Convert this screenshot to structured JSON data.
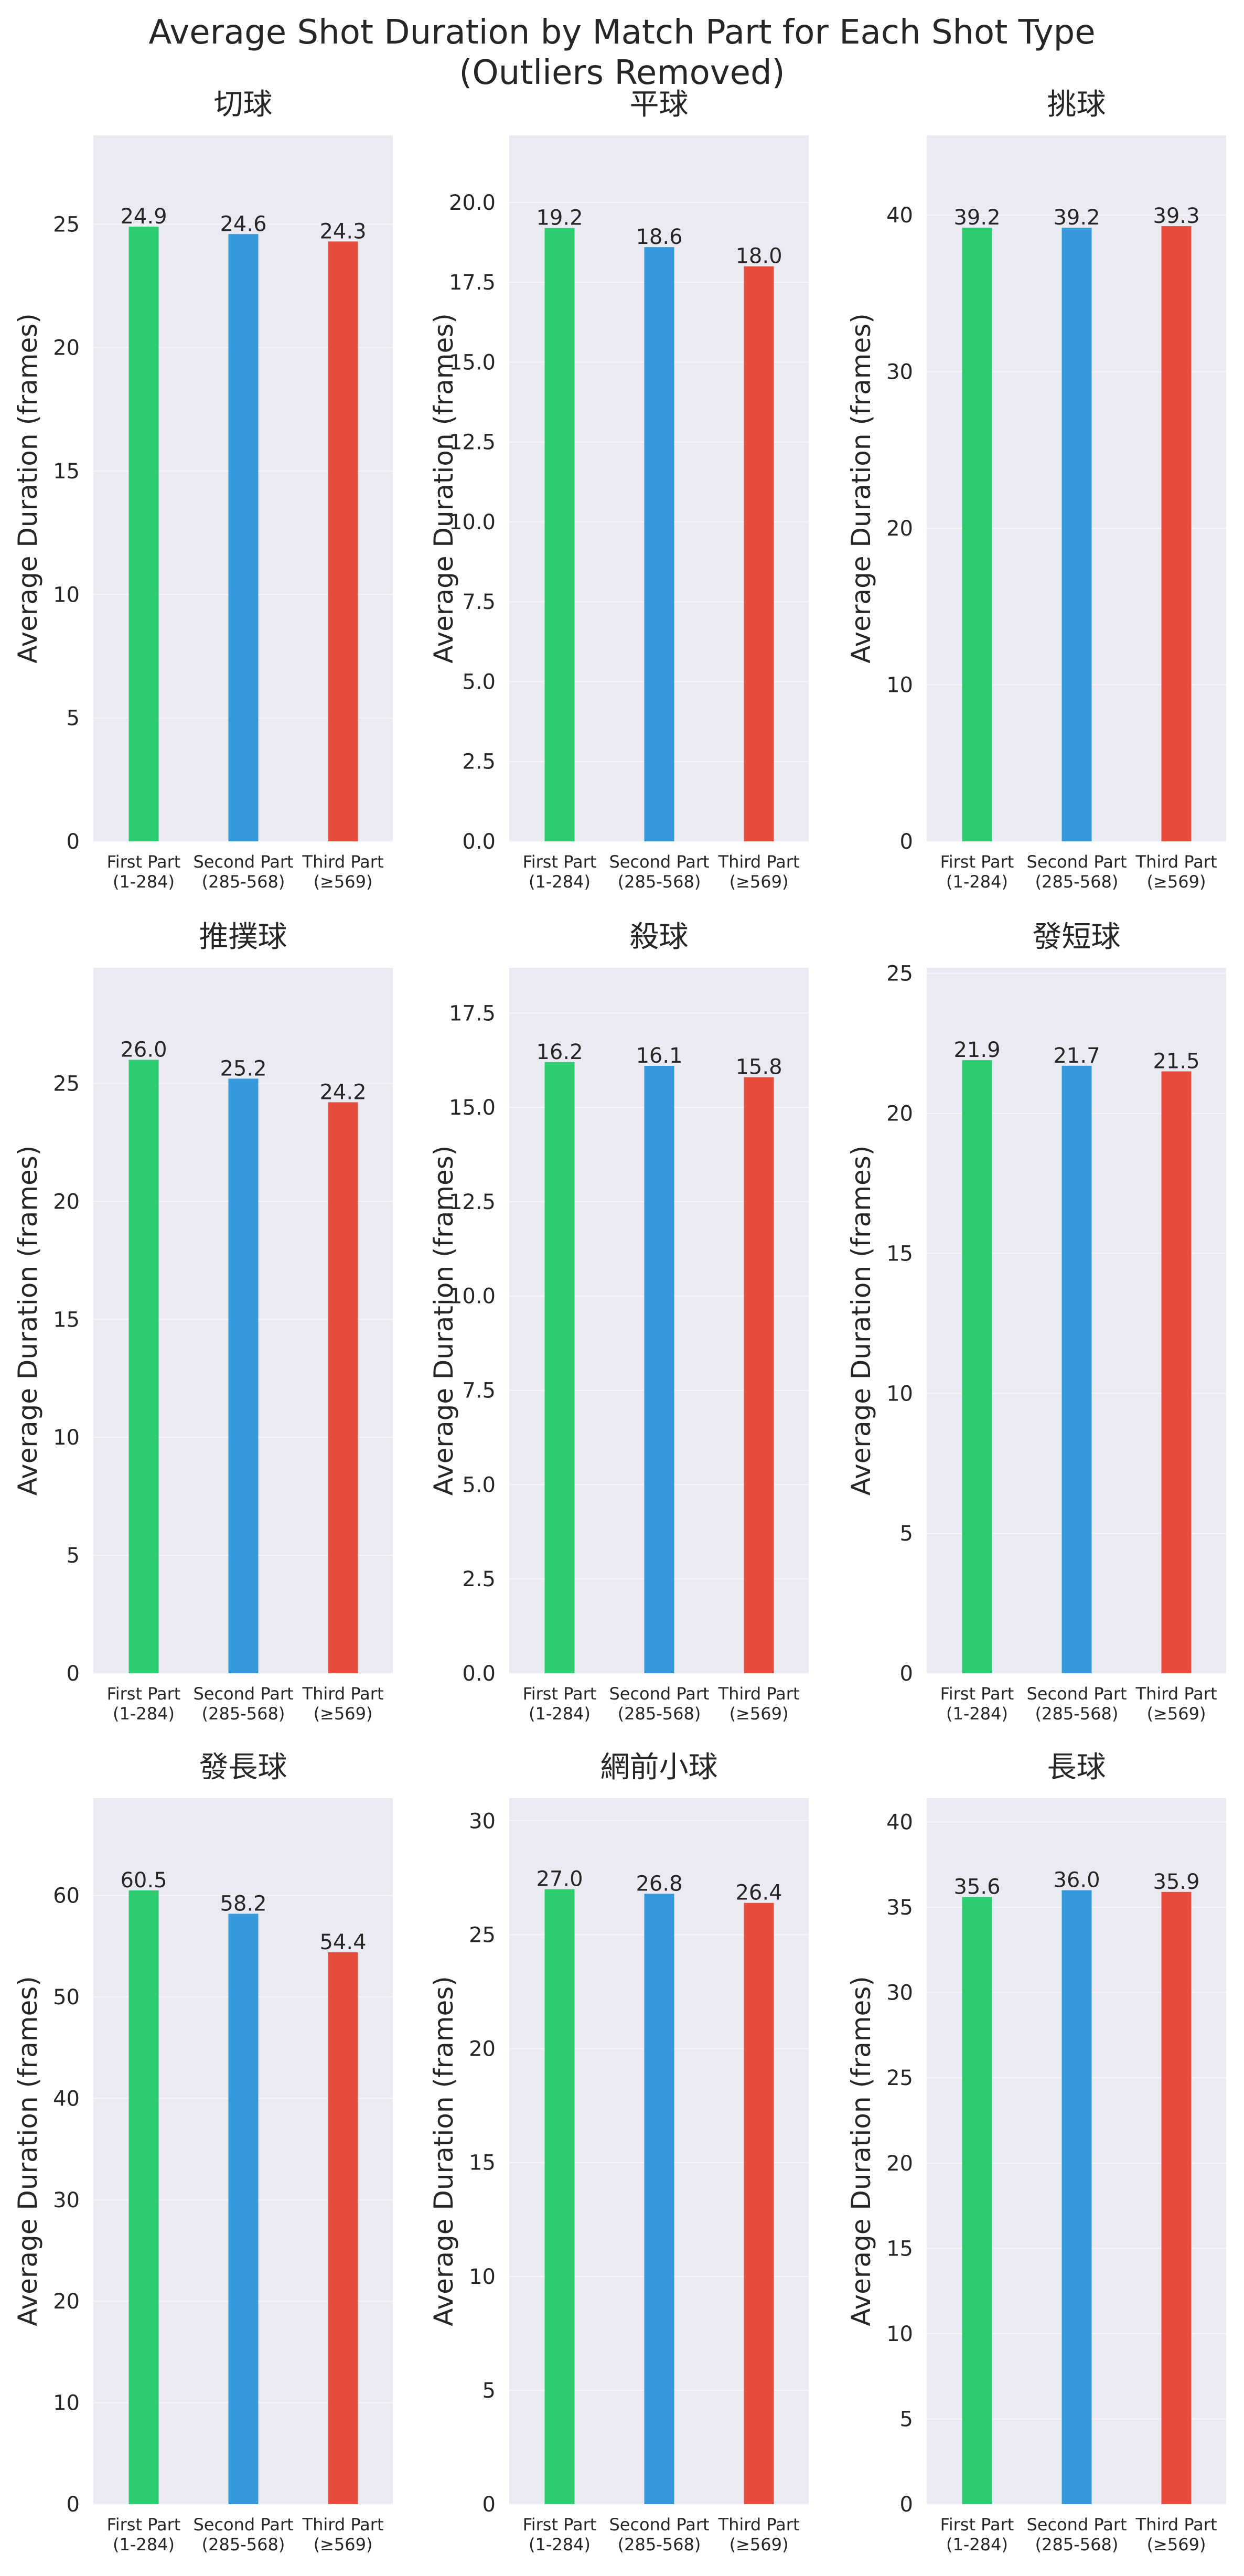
{
  "title_line1": "Average Shot Duration by Match Part for Each Shot Type",
  "title_line2": "(Outliers Removed)",
  "colors": {
    "background": "#ffffff",
    "plot_bg": "#eaeaf2",
    "grid": "#f6f6f9",
    "bars": [
      "#2ecc71",
      "#3498db",
      "#e74c3c"
    ]
  },
  "chart_data": [
    {
      "type": "bar",
      "title": "切球",
      "ylabel": "Average Duration (frames)",
      "categories": [
        [
          "First Part",
          "(1-284)"
        ],
        [
          "Second Part",
          "(285-568)"
        ],
        [
          "Third Part",
          "(≥569)"
        ]
      ],
      "values": [
        24.9,
        24.6,
        24.3
      ],
      "value_labels": [
        "24.9",
        "24.6",
        "24.3"
      ],
      "ylim": [
        0,
        28.6
      ],
      "yticks": [
        0,
        5,
        10,
        15,
        20,
        25
      ],
      "ytick_labels": [
        "0",
        "5",
        "10",
        "15",
        "20",
        "25"
      ],
      "grid": true
    },
    {
      "type": "bar",
      "title": "平球",
      "ylabel": "Average Duration (frames)",
      "categories": [
        [
          "First Part",
          "(1-284)"
        ],
        [
          "Second Part",
          "(285-568)"
        ],
        [
          "Third Part",
          "(≥569)"
        ]
      ],
      "values": [
        19.2,
        18.6,
        18.0
      ],
      "value_labels": [
        "19.2",
        "18.6",
        "18.0"
      ],
      "ylim": [
        0,
        22.1
      ],
      "yticks": [
        0,
        2.5,
        5,
        7.5,
        10,
        12.5,
        15,
        17.5,
        20
      ],
      "ytick_labels": [
        "0.0",
        "2.5",
        "5.0",
        "7.5",
        "10.0",
        "12.5",
        "15.0",
        "17.5",
        "20.0"
      ],
      "grid": true
    },
    {
      "type": "bar",
      "title": "挑球",
      "ylabel": "Average Duration (frames)",
      "categories": [
        [
          "First Part",
          "(1-284)"
        ],
        [
          "Second Part",
          "(285-568)"
        ],
        [
          "Third Part",
          "(≥569)"
        ]
      ],
      "values": [
        39.2,
        39.2,
        39.3
      ],
      "value_labels": [
        "39.2",
        "39.2",
        "39.3"
      ],
      "ylim": [
        0,
        45.1
      ],
      "yticks": [
        0,
        10,
        20,
        30,
        40
      ],
      "ytick_labels": [
        "0",
        "10",
        "20",
        "30",
        "40"
      ],
      "grid": true
    },
    {
      "type": "bar",
      "title": "推撲球",
      "ylabel": "Average Duration (frames)",
      "categories": [
        [
          "First Part",
          "(1-284)"
        ],
        [
          "Second Part",
          "(285-568)"
        ],
        [
          "Third Part",
          "(≥569)"
        ]
      ],
      "values": [
        26.0,
        25.2,
        24.2
      ],
      "value_labels": [
        "26.0",
        "25.2",
        "24.2"
      ],
      "ylim": [
        0,
        29.9
      ],
      "yticks": [
        0,
        5,
        10,
        15,
        20,
        25
      ],
      "ytick_labels": [
        "0",
        "5",
        "10",
        "15",
        "20",
        "25"
      ],
      "grid": true
    },
    {
      "type": "bar",
      "title": "殺球",
      "ylabel": "Average Duration (frames)",
      "categories": [
        [
          "First Part",
          "(1-284)"
        ],
        [
          "Second Part",
          "(285-568)"
        ],
        [
          "Third Part",
          "(≥569)"
        ]
      ],
      "values": [
        16.2,
        16.1,
        15.8
      ],
      "value_labels": [
        "16.2",
        "16.1",
        "15.8"
      ],
      "ylim": [
        0,
        18.7
      ],
      "yticks": [
        0,
        2.5,
        5,
        7.5,
        10,
        12.5,
        15,
        17.5
      ],
      "ytick_labels": [
        "0.0",
        "2.5",
        "5.0",
        "7.5",
        "10.0",
        "12.5",
        "15.0",
        "17.5"
      ],
      "grid": true
    },
    {
      "type": "bar",
      "title": "發短球",
      "ylabel": "Average Duration (frames)",
      "categories": [
        [
          "First Part",
          "(1-284)"
        ],
        [
          "Second Part",
          "(285-568)"
        ],
        [
          "Third Part",
          "(≥569)"
        ]
      ],
      "values": [
        21.9,
        21.7,
        21.5
      ],
      "value_labels": [
        "21.9",
        "21.7",
        "21.5"
      ],
      "ylim": [
        0,
        25.2
      ],
      "yticks": [
        0,
        5,
        10,
        15,
        20,
        25
      ],
      "ytick_labels": [
        "0",
        "5",
        "10",
        "15",
        "20",
        "25"
      ],
      "grid": true
    },
    {
      "type": "bar",
      "title": "發長球",
      "ylabel": "Average Duration (frames)",
      "categories": [
        [
          "First Part",
          "(1-284)"
        ],
        [
          "Second Part",
          "(285-568)"
        ],
        [
          "Third Part",
          "(≥569)"
        ]
      ],
      "values": [
        60.5,
        58.2,
        54.4
      ],
      "value_labels": [
        "60.5",
        "58.2",
        "54.4"
      ],
      "ylim": [
        0,
        69.6
      ],
      "yticks": [
        0,
        10,
        20,
        30,
        40,
        50,
        60
      ],
      "ytick_labels": [
        "0",
        "10",
        "20",
        "30",
        "40",
        "50",
        "60"
      ],
      "grid": true
    },
    {
      "type": "bar",
      "title": "網前小球",
      "ylabel": "Average Duration (frames)",
      "categories": [
        [
          "First Part",
          "(1-284)"
        ],
        [
          "Second Part",
          "(285-568)"
        ],
        [
          "Third Part",
          "(≥569)"
        ]
      ],
      "values": [
        27.0,
        26.8,
        26.4
      ],
      "value_labels": [
        "27.0",
        "26.8",
        "26.4"
      ],
      "ylim": [
        0,
        31.0
      ],
      "yticks": [
        0,
        5,
        10,
        15,
        20,
        25,
        30
      ],
      "ytick_labels": [
        "0",
        "5",
        "10",
        "15",
        "20",
        "25",
        "30"
      ],
      "grid": true
    },
    {
      "type": "bar",
      "title": "長球",
      "ylabel": "Average Duration (frames)",
      "categories": [
        [
          "First Part",
          "(1-284)"
        ],
        [
          "Second Part",
          "(285-568)"
        ],
        [
          "Third Part",
          "(≥569)"
        ]
      ],
      "values": [
        35.6,
        36.0,
        35.9
      ],
      "value_labels": [
        "35.6",
        "36.0",
        "35.9"
      ],
      "ylim": [
        0,
        41.4
      ],
      "yticks": [
        0,
        5,
        10,
        15,
        20,
        25,
        30,
        35,
        40
      ],
      "ytick_labels": [
        "0",
        "5",
        "10",
        "15",
        "20",
        "25",
        "30",
        "35",
        "40"
      ],
      "grid": true
    }
  ]
}
